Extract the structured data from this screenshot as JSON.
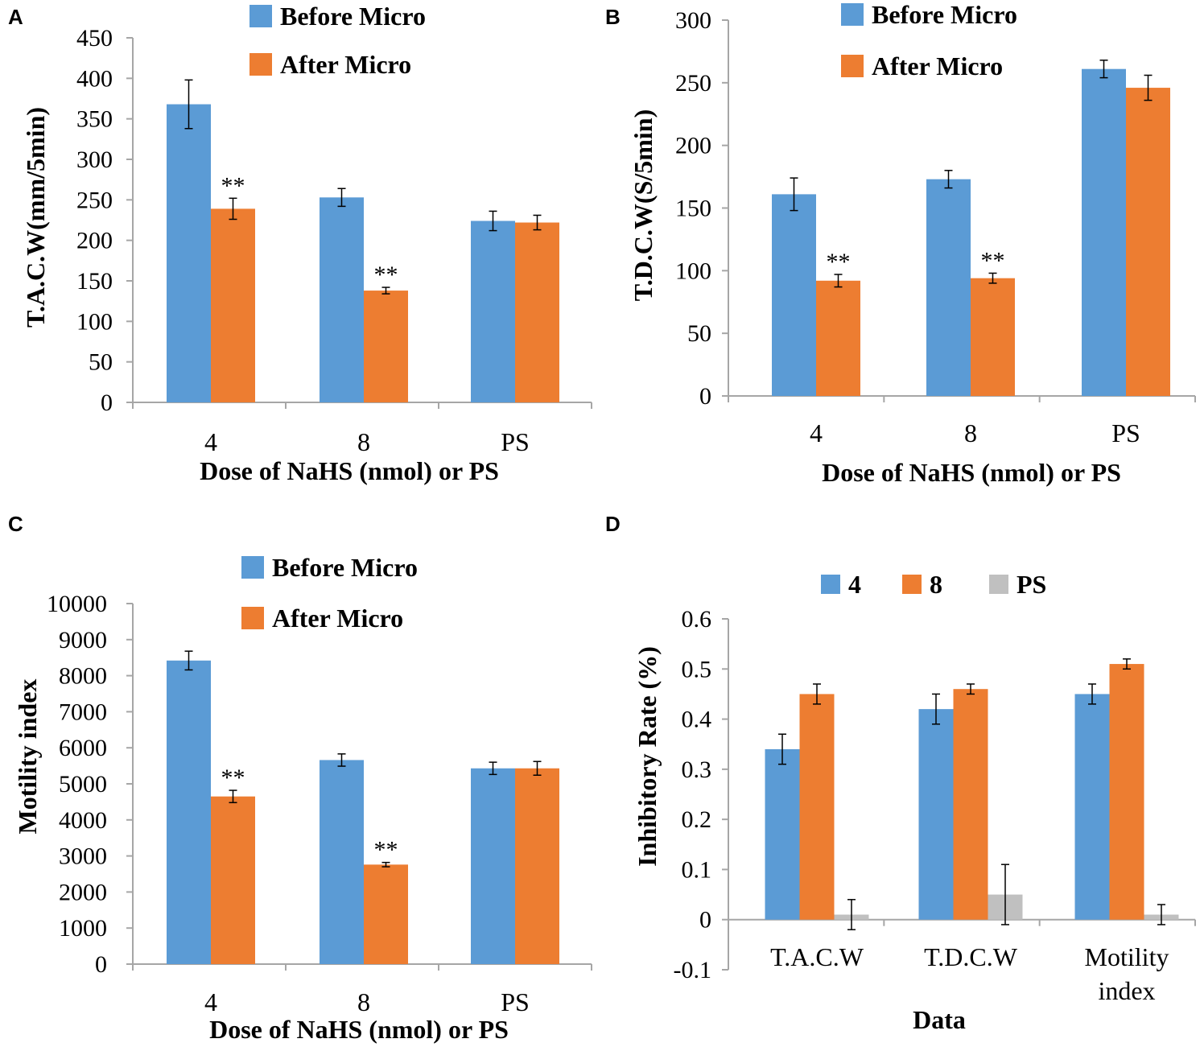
{
  "colors": {
    "before": "#5b9bd5",
    "after": "#ed7d31",
    "ps": "#c0c0c0",
    "axis": "#a6a6a6",
    "err": "#000000"
  },
  "chart_data": [
    {
      "panel": "A",
      "type": "bar",
      "categories": [
        "4",
        "8",
        "PS"
      ],
      "xlabel": "Dose of  NaHS (nmol) or PS",
      "ylabel": "T.A.C.W(mm/5min)",
      "ylim": [
        0,
        450
      ],
      "ystep": 50,
      "yticks": [
        "0",
        "50",
        "100",
        "150",
        "200",
        "250",
        "300",
        "350",
        "400",
        "450"
      ],
      "series": [
        {
          "name": "Before Micro",
          "values": [
            368,
            253,
            224
          ],
          "errors": [
            30,
            11,
            12
          ]
        },
        {
          "name": "After Micro",
          "values": [
            239,
            138,
            222
          ],
          "errors": [
            13,
            4,
            9
          ]
        }
      ],
      "annotations": [
        {
          "text": "**",
          "category": 0,
          "series": 1
        },
        {
          "text": "**",
          "category": 1,
          "series": 1
        }
      ]
    },
    {
      "panel": "B",
      "type": "bar",
      "categories": [
        "4",
        "8",
        "PS"
      ],
      "xlabel": "Dose of  NaHS (nmol) or PS",
      "ylabel": "T.D.C.W(S/5min)",
      "ylim": [
        0,
        300
      ],
      "ystep": 50,
      "yticks": [
        "0",
        "50",
        "100",
        "150",
        "200",
        "250",
        "300"
      ],
      "series": [
        {
          "name": "Before Micro",
          "values": [
            161,
            173,
            261
          ],
          "errors": [
            13,
            7,
            7
          ]
        },
        {
          "name": "After Micro",
          "values": [
            92,
            94,
            246
          ],
          "errors": [
            5,
            4,
            10
          ]
        }
      ],
      "annotations": [
        {
          "text": "**",
          "category": 0,
          "series": 1
        },
        {
          "text": "**",
          "category": 1,
          "series": 1
        }
      ]
    },
    {
      "panel": "C",
      "type": "bar",
      "categories": [
        "4",
        "8",
        "PS"
      ],
      "xlabel": "Dose of  NaHS (nmol) or PS",
      "ylabel": "Motility index",
      "ylim": [
        0,
        10000
      ],
      "ystep": 1000,
      "yticks": [
        "0",
        "1000",
        "2000",
        "3000",
        "4000",
        "5000",
        "6000",
        "7000",
        "8000",
        "9000",
        "10000"
      ],
      "series": [
        {
          "name": "Before Micro",
          "values": [
            8420,
            5660,
            5430
          ],
          "errors": [
            260,
            170,
            170
          ]
        },
        {
          "name": "After Micro",
          "values": [
            4650,
            2760,
            5430
          ],
          "errors": [
            170,
            60,
            190
          ]
        }
      ],
      "annotations": [
        {
          "text": "**",
          "category": 0,
          "series": 1
        },
        {
          "text": "**",
          "category": 1,
          "series": 1
        }
      ]
    },
    {
      "panel": "D",
      "type": "bar",
      "categories": [
        "T.A.C.W",
        "T.D.C.W",
        "Motility index"
      ],
      "xlabel": "Data",
      "ylabel": "Inhibitory Rate (%)",
      "ylim": [
        -0.1,
        0.6
      ],
      "ystep": 0.1,
      "yticks": [
        "-0.1",
        "0",
        "0.1",
        "0.2",
        "0.3",
        "0.4",
        "0.5",
        "0.6"
      ],
      "series": [
        {
          "name": "4",
          "values": [
            0.34,
            0.42,
            0.45
          ],
          "errors": [
            0.03,
            0.03,
            0.02
          ]
        },
        {
          "name": "8",
          "values": [
            0.45,
            0.46,
            0.51
          ],
          "errors": [
            0.02,
            0.01,
            0.01
          ]
        },
        {
          "name": "PS",
          "values": [
            0.01,
            0.05,
            0.01
          ],
          "errors": [
            0.03,
            0.06,
            0.02
          ]
        }
      ],
      "annotations": []
    }
  ]
}
